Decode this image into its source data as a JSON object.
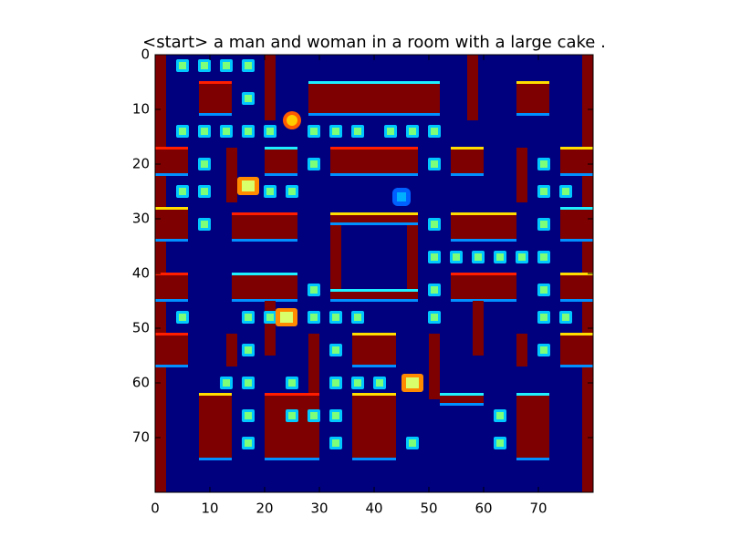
{
  "caption": "<start> a man and woman in a room with a large cake .",
  "chart_data": {
    "type": "heatmap",
    "title": "<start> a man and woman in a room with a large cake .",
    "colormap": "jet",
    "grid_size": 80,
    "xlim": [
      0,
      80
    ],
    "ylim": [
      80,
      0
    ],
    "x_ticks": [
      "0",
      "10",
      "20",
      "30",
      "40",
      "50",
      "60",
      "70"
    ],
    "y_ticks": [
      "0",
      "10",
      "20",
      "30",
      "40",
      "50",
      "60",
      "70"
    ],
    "grid": false,
    "colors": {
      "background": "#00007f",
      "wall": "#7f0000",
      "wall_edge_red": "#ff1e00",
      "wall_edge_cyan": "#1ff0ff",
      "wall_edge_blue": "#0090ff",
      "wall_edge_yellow": "#ffdd00",
      "pellet": "#7dff7a",
      "pellet_glow": "#00c8ff"
    },
    "walls": [
      [
        0,
        0,
        2,
        80
      ],
      [
        78,
        0,
        2,
        80
      ],
      [
        20,
        0,
        2,
        12
      ],
      [
        57,
        0,
        2,
        12
      ],
      [
        8,
        5,
        6,
        6
      ],
      [
        66,
        5,
        6,
        6
      ],
      [
        28,
        5,
        24,
        6
      ],
      [
        0,
        17,
        6,
        5
      ],
      [
        74,
        17,
        6,
        5
      ],
      [
        20,
        17,
        6,
        5
      ],
      [
        32,
        17,
        16,
        5
      ],
      [
        54,
        17,
        6,
        5
      ],
      [
        13,
        17,
        2,
        10
      ],
      [
        66,
        17,
        2,
        10
      ],
      [
        0,
        28,
        6,
        6
      ],
      [
        74,
        28,
        6,
        6
      ],
      [
        14,
        29,
        12,
        5
      ],
      [
        54,
        29,
        12,
        5
      ],
      [
        32,
        29,
        2,
        16
      ],
      [
        46,
        29,
        2,
        16
      ],
      [
        32,
        29,
        16,
        2
      ],
      [
        32,
        43,
        16,
        2
      ],
      [
        0,
        40,
        6,
        5
      ],
      [
        74,
        40,
        6,
        5
      ],
      [
        14,
        40,
        12,
        5
      ],
      [
        54,
        40,
        12,
        5
      ],
      [
        20,
        45,
        2,
        10
      ],
      [
        58,
        45,
        2,
        10
      ],
      [
        0,
        51,
        6,
        6
      ],
      [
        74,
        51,
        6,
        6
      ],
      [
        13,
        51,
        2,
        6
      ],
      [
        66,
        51,
        2,
        6
      ],
      [
        36,
        51,
        8,
        6
      ],
      [
        28,
        51,
        2,
        12
      ],
      [
        50,
        51,
        2,
        12
      ],
      [
        8,
        62,
        6,
        12
      ],
      [
        66,
        62,
        6,
        12
      ],
      [
        20,
        62,
        10,
        12
      ],
      [
        36,
        62,
        8,
        12
      ],
      [
        52,
        62,
        8,
        2
      ]
    ],
    "pellets": [
      [
        5,
        2
      ],
      [
        9,
        2
      ],
      [
        13,
        2
      ],
      [
        17,
        2
      ],
      [
        17,
        8
      ],
      [
        5,
        14
      ],
      [
        9,
        14
      ],
      [
        13,
        14
      ],
      [
        17,
        14
      ],
      [
        21,
        14
      ],
      [
        29,
        14
      ],
      [
        33,
        14
      ],
      [
        37,
        14
      ],
      [
        43,
        14
      ],
      [
        47,
        14
      ],
      [
        51,
        14
      ],
      [
        9,
        20
      ],
      [
        29,
        20
      ],
      [
        51,
        20
      ],
      [
        71,
        20
      ],
      [
        5,
        25
      ],
      [
        9,
        25
      ],
      [
        21,
        25
      ],
      [
        25,
        25
      ],
      [
        71,
        25
      ],
      [
        75,
        25
      ],
      [
        9,
        31
      ],
      [
        51,
        31
      ],
      [
        71,
        31
      ],
      [
        51,
        37
      ],
      [
        55,
        37
      ],
      [
        59,
        37
      ],
      [
        63,
        37
      ],
      [
        67,
        37
      ],
      [
        71,
        37
      ],
      [
        29,
        43
      ],
      [
        51,
        43
      ],
      [
        71,
        43
      ],
      [
        5,
        48
      ],
      [
        17,
        48
      ],
      [
        21,
        48
      ],
      [
        29,
        48
      ],
      [
        33,
        48
      ],
      [
        37,
        48
      ],
      [
        51,
        48
      ],
      [
        71,
        48
      ],
      [
        75,
        48
      ],
      [
        17,
        54
      ],
      [
        33,
        54
      ],
      [
        71,
        54
      ],
      [
        13,
        60
      ],
      [
        17,
        60
      ],
      [
        25,
        60
      ],
      [
        33,
        60
      ],
      [
        37,
        60
      ],
      [
        41,
        60
      ],
      [
        17,
        66
      ],
      [
        25,
        66
      ],
      [
        29,
        66
      ],
      [
        33,
        66
      ],
      [
        63,
        66
      ],
      [
        17,
        71
      ],
      [
        33,
        71
      ],
      [
        47,
        71
      ],
      [
        63,
        71
      ]
    ],
    "power_pellets": [
      [
        17,
        24
      ],
      [
        24,
        48
      ],
      [
        47,
        60
      ]
    ],
    "characters": [
      {
        "kind": "pacman",
        "at": [
          25,
          12
        ],
        "color": "#ffcc00"
      },
      {
        "kind": "ghost",
        "at": [
          45,
          26
        ],
        "color": "#00b0ff"
      }
    ]
  }
}
